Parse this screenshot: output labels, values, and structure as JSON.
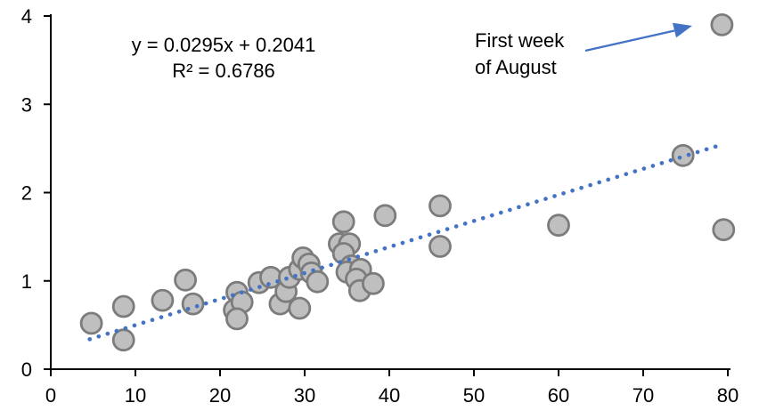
{
  "chart_data": {
    "type": "scatter",
    "title": "",
    "equation_label": "y = 0.0295x + 0.2041",
    "r_squared_label": "R² = 0.6786",
    "annotation": {
      "line1": "First week",
      "line2": "of August",
      "target_point": [
        79.3,
        3.9
      ]
    },
    "x_axis": {
      "min": 0,
      "max": 80,
      "ticks": [
        0,
        10,
        20,
        30,
        40,
        50,
        60,
        70,
        80
      ],
      "label": ""
    },
    "y_axis": {
      "min": 0,
      "max": 4,
      "ticks": [
        0,
        1,
        2,
        3,
        4
      ],
      "label": ""
    },
    "grid": false,
    "legend": "none",
    "trendline": {
      "style": "dotted",
      "slope": 0.0295,
      "intercept": 0.2041,
      "x_start": 4.6,
      "x_end": 78.8,
      "color": "#4472C4"
    },
    "points": [
      [
        4.8,
        0.52
      ],
      [
        8.6,
        0.71
      ],
      [
        8.6,
        0.33
      ],
      [
        13.2,
        0.78
      ],
      [
        15.9,
        1.01
      ],
      [
        16.8,
        0.74
      ],
      [
        21.7,
        0.67
      ],
      [
        22.0,
        0.87
      ],
      [
        22.6,
        0.76
      ],
      [
        22.0,
        0.57
      ],
      [
        24.6,
        0.98
      ],
      [
        26.0,
        1.04
      ],
      [
        27.1,
        0.74
      ],
      [
        27.8,
        0.88
      ],
      [
        28.2,
        1.04
      ],
      [
        29.4,
        1.13
      ],
      [
        29.8,
        1.26
      ],
      [
        30.5,
        1.19
      ],
      [
        30.8,
        1.09
      ],
      [
        31.5,
        0.99
      ],
      [
        29.4,
        0.69
      ],
      [
        34.1,
        1.42
      ],
      [
        34.6,
        1.67
      ],
      [
        35.3,
        1.42
      ],
      [
        34.6,
        1.31
      ],
      [
        35.5,
        1.17
      ],
      [
        35.0,
        1.1
      ],
      [
        36.6,
        1.13
      ],
      [
        36.1,
        1.02
      ],
      [
        36.5,
        0.89
      ],
      [
        38.1,
        0.97
      ],
      [
        39.5,
        1.74
      ],
      [
        46.0,
        1.85
      ],
      [
        46.0,
        1.39
      ],
      [
        60.0,
        1.63
      ],
      [
        74.7,
        2.42
      ],
      [
        79.3,
        3.9
      ],
      [
        79.5,
        1.58
      ]
    ],
    "marker": {
      "fill": "#BFBFBF",
      "stroke": "#7C7C7C"
    },
    "colors": {
      "axis": "#000000",
      "accent_blue": "#4472C4",
      "text": "#000000"
    }
  }
}
